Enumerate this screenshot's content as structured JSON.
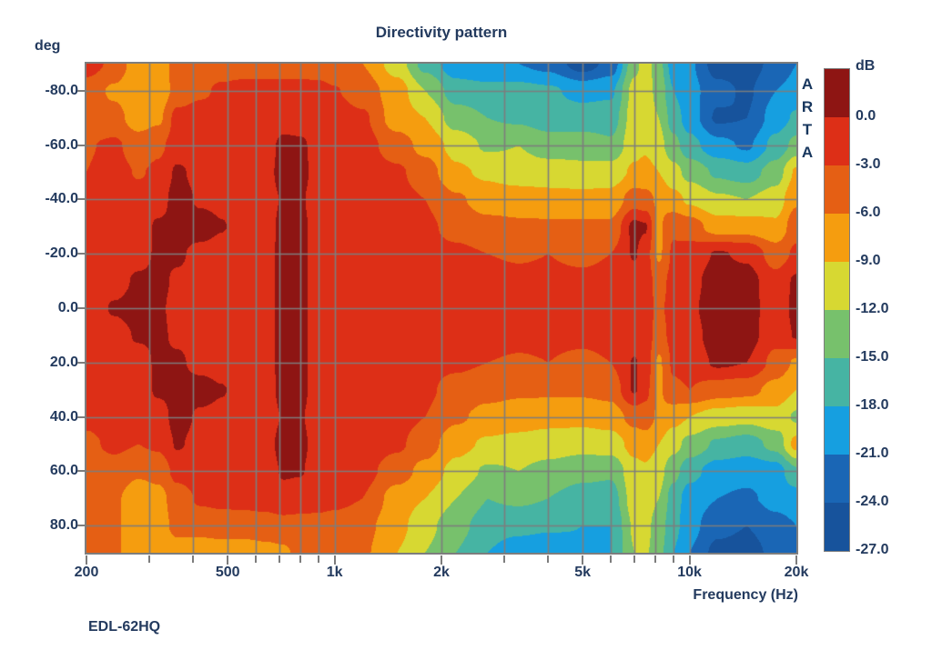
{
  "chart_data": {
    "type": "heatmap",
    "title": "Directivity pattern",
    "ylabel": "deg",
    "xlabel": "Frequency (Hz)",
    "footer": "EDL-62HQ",
    "watermark": "ARTA",
    "x_scale": "log",
    "x_range_hz": [
      200,
      20000
    ],
    "y_range_deg": [
      -90,
      90
    ],
    "grid_on": true,
    "grid_color": "#7d7d7d",
    "x_tick_labels": [
      {
        "hz": 200,
        "label": "200"
      },
      {
        "hz": 500,
        "label": "500"
      },
      {
        "hz": 1000,
        "label": "1k"
      },
      {
        "hz": 2000,
        "label": "2k"
      },
      {
        "hz": 5000,
        "label": "5k"
      },
      {
        "hz": 10000,
        "label": "10k"
      },
      {
        "hz": 20000,
        "label": "20k"
      }
    ],
    "x_gridlines_hz": [
      300,
      400,
      500,
      600,
      700,
      800,
      900,
      1000,
      2000,
      3000,
      4000,
      5000,
      6000,
      7000,
      8000,
      9000,
      10000
    ],
    "y_tick_labels": [
      {
        "deg": -80,
        "label": "-80.0"
      },
      {
        "deg": -60,
        "label": "-60.0"
      },
      {
        "deg": -40,
        "label": "-40.0"
      },
      {
        "deg": -20,
        "label": "-20.0"
      },
      {
        "deg": 0,
        "label": "0.0"
      },
      {
        "deg": 20,
        "label": "20.0"
      },
      {
        "deg": 40,
        "label": "40.0"
      },
      {
        "deg": 60,
        "label": "60.0"
      },
      {
        "deg": 80,
        "label": "80.0"
      }
    ],
    "colorbar": {
      "title": "dB",
      "boundary_labels": [
        "0.0",
        "-3.0",
        "-6.0",
        "-9.0",
        "-12.0",
        "-15.0",
        "-18.0",
        "-21.0",
        "-24.0",
        "-27.0"
      ],
      "levels_db": [
        0,
        -3,
        -6,
        -9,
        -12,
        -15,
        -18,
        -21,
        -24,
        -27
      ],
      "colors": [
        "#8e1513",
        "#dd2f17",
        "#e55f14",
        "#f59d0f",
        "#d7d832",
        "#77c16c",
        "#46b4a3",
        "#169fe0",
        "#1a66b5",
        "#17539c"
      ]
    },
    "grid": {
      "freqs_hz": [
        200,
        240,
        280,
        320,
        360,
        420,
        480,
        560,
        640,
        720,
        800,
        900,
        1000,
        1200,
        1500,
        1800,
        2200,
        2700,
        3300,
        4000,
        5000,
        6000,
        7000,
        7500,
        8200,
        9000,
        10000,
        12000,
        14500,
        17500,
        20000
      ],
      "angles_deg": [
        -90,
        -80,
        -70,
        -60,
        -50,
        -40,
        -30,
        -20,
        -10,
        0,
        10,
        20,
        30,
        40,
        50,
        60,
        70,
        80,
        90
      ],
      "values_db": [
        [
          -1.5,
          -3.8,
          -8,
          -8,
          -4.5,
          -4.5,
          -4.5,
          -4.5,
          -4.5,
          -4.5,
          -4.5,
          -4.5,
          -5,
          -6,
          -10.5,
          -16,
          -20,
          -21,
          -21,
          -22,
          -25.5,
          -23,
          -13,
          -10.5,
          -14,
          -19.5,
          -20.5,
          -25.5,
          -25.5,
          -23,
          -21
        ],
        [
          -4.5,
          -6.5,
          -8.5,
          -8,
          -5,
          -3.5,
          -2.5,
          -2,
          -2,
          -2,
          -2,
          -2.2,
          -2.8,
          -4.5,
          -7.5,
          -12,
          -16.5,
          -17,
          -17,
          -17.5,
          -19,
          -18.5,
          -11,
          -10.5,
          -13,
          -18,
          -20,
          -23,
          -24.5,
          -21,
          -20
        ],
        [
          -4.5,
          -5,
          -7.5,
          -6.5,
          -2,
          -1.5,
          -1.5,
          -1.5,
          -1.5,
          -1.5,
          -1.5,
          -1.5,
          -1.5,
          -2.5,
          -7.5,
          -9,
          -13.5,
          -15,
          -15.5,
          -16.5,
          -16.5,
          -16.5,
          -10.5,
          -10.5,
          -12,
          -16.5,
          -19.5,
          -24.5,
          -24,
          -19.5,
          -17.5
        ],
        [
          -3.2,
          -2.5,
          -4.5,
          -3.5,
          -1.8,
          -1.5,
          -1.5,
          -1.5,
          -1.2,
          0.8,
          0.5,
          -1,
          -1.5,
          -1.8,
          -4.5,
          -7,
          -10,
          -12.5,
          -12,
          -13.5,
          -13.5,
          -14.5,
          -10,
          -9.5,
          -11,
          -14,
          -17,
          -20,
          -21.5,
          -17,
          -14
        ],
        [
          -3,
          -2,
          -3.2,
          -2.5,
          0.5,
          -1,
          -1.5,
          -1.5,
          -1,
          1.2,
          0.8,
          -1,
          -1.5,
          -1.5,
          -2.5,
          -4.5,
          -8.5,
          -9.5,
          -10.5,
          -10.5,
          -11,
          -10.5,
          -8.5,
          -8,
          -9,
          -11,
          -13,
          -15.5,
          -16.5,
          -13.5,
          -8.5
        ],
        [
          -2.5,
          -1.5,
          -2,
          -1.5,
          1.5,
          -0.5,
          -0.8,
          -1.5,
          -1.2,
          0.3,
          0.3,
          -1.2,
          -1.5,
          -1.5,
          -2,
          -3,
          -5.5,
          -7.5,
          -7.5,
          -8,
          -8,
          -8,
          -4.5,
          -5,
          -6.5,
          -8,
          -9.5,
          -11.5,
          -12,
          -10.5,
          -6.5
        ],
        [
          -2.2,
          -1.5,
          -1.5,
          0.5,
          1,
          1.5,
          0.2,
          -1.5,
          -1.3,
          1,
          0.7,
          -1.2,
          -1.5,
          -1.5,
          -1.8,
          -2.5,
          -3.8,
          -5,
          -5.5,
          -5.5,
          -5.5,
          -5.5,
          0.8,
          0.3,
          -6.5,
          -3.5,
          -4.5,
          -7.5,
          -7.5,
          -8.5,
          -4
        ],
        [
          -2,
          -1.5,
          -1.2,
          0.5,
          0.5,
          -1,
          -1.5,
          -1.5,
          -1.3,
          1.2,
          0.8,
          -1.2,
          -1.5,
          -1.5,
          -1.8,
          -2.2,
          -2.5,
          -3,
          -3.2,
          -3,
          -3.5,
          -3,
          0.3,
          -1.5,
          -6.5,
          -2.5,
          -1.8,
          0.3,
          -0.5,
          -4.5,
          -2.5
        ],
        [
          -1.8,
          -1.2,
          0.5,
          0.8,
          -0.5,
          -1.5,
          -1.5,
          -1.5,
          -1.3,
          1.2,
          0.8,
          -1.2,
          -1.5,
          -1.5,
          -1.8,
          -2,
          -2,
          -2.2,
          -2.5,
          -2.5,
          -2.5,
          -2.2,
          -1.5,
          -1.8,
          -4,
          -2.2,
          -1,
          1.5,
          1.2,
          -2,
          0.5
        ],
        [
          -1.8,
          0.3,
          1.2,
          0.5,
          -1,
          -1.5,
          -1.5,
          -1.5,
          -1.3,
          1.2,
          0.8,
          -1.2,
          -1.5,
          -1.5,
          -1.8,
          -2,
          -2,
          -2,
          -2.2,
          -2.2,
          -2.2,
          -2,
          -1.8,
          -2,
          -3.5,
          -2,
          -0.5,
          1.5,
          1.3,
          -1.8,
          0.8
        ],
        [
          -1.8,
          -1.2,
          0.3,
          0.5,
          -0.5,
          -1.5,
          -1.5,
          -1.5,
          -1.3,
          1.2,
          0.8,
          -1.2,
          -1.5,
          -1.5,
          -1.8,
          -2,
          -2,
          -2.2,
          -2.5,
          -2.5,
          -2.5,
          -2.2,
          -1.5,
          -1.8,
          -4,
          -2.2,
          -1.2,
          1.5,
          1.2,
          -2,
          0.3
        ],
        [
          -2,
          -1.5,
          -1.2,
          0.5,
          0.5,
          -1,
          -1.5,
          -1.5,
          -1.3,
          1.2,
          0.8,
          -1.2,
          -1.5,
          -1.5,
          -1.8,
          -2.2,
          -2.5,
          -3,
          -3.2,
          -3,
          -3.5,
          -3,
          0.2,
          -1,
          -6.5,
          -2.5,
          -1.8,
          0.5,
          0,
          -4,
          -6.5
        ],
        [
          -2.2,
          -1.5,
          -1.5,
          0.5,
          1,
          1.2,
          0.2,
          -1.5,
          -1.3,
          1,
          0.7,
          -1.2,
          -1.5,
          -1.5,
          -1.8,
          -2.5,
          -4,
          -5,
          -5.5,
          -5.5,
          -5.5,
          -5,
          0.3,
          -2,
          -6.5,
          -3.5,
          -3,
          -4.5,
          -5,
          -7,
          -9
        ],
        [
          -2.5,
          -1.8,
          -2,
          -1.5,
          1.2,
          -0.5,
          -0.8,
          -1.5,
          -1.2,
          0.2,
          0.2,
          -1.2,
          -1.5,
          -1.5,
          -2,
          -3,
          -5.5,
          -7,
          -7.5,
          -8,
          -8,
          -7.5,
          -5,
          -4.5,
          -6.5,
          -8,
          -9,
          -10.5,
          -11,
          -10,
          -12.5
        ],
        [
          -3.5,
          -2.5,
          -3,
          -2.5,
          0.3,
          -1,
          -1.3,
          -1.5,
          -1,
          1,
          0.6,
          -1,
          -1.5,
          -1.5,
          -2.5,
          -4.5,
          -8,
          -9.5,
          -10,
          -10.5,
          -11,
          -10.5,
          -8,
          -7.5,
          -9,
          -11,
          -13,
          -15.5,
          -16.5,
          -14,
          -8
        ],
        [
          -4.5,
          -4,
          -5.5,
          -5,
          -2,
          -1.5,
          -1.5,
          -1.5,
          -1.2,
          0.3,
          0.2,
          -1.2,
          -1.8,
          -2,
          -4.5,
          -7,
          -10,
          -12.5,
          -12,
          -13,
          -14,
          -14.5,
          -10,
          -9.5,
          -11,
          -14,
          -17,
          -19.5,
          -20,
          -19.5,
          -15.5
        ],
        [
          -4.8,
          -5.5,
          -8,
          -7,
          -4.5,
          -2.5,
          -2.2,
          -2,
          -1.8,
          -1,
          -1.5,
          -1.8,
          -2.2,
          -3,
          -7.5,
          -9,
          -12,
          -15,
          -14.5,
          -15,
          -16.5,
          -16.5,
          -10.5,
          -10.5,
          -12,
          -16.5,
          -19.5,
          -21,
          -21.5,
          -20,
          -19.5
        ],
        [
          -5,
          -5.5,
          -8.5,
          -7.5,
          -5,
          -5,
          -4.5,
          -4.5,
          -4.2,
          -4,
          -4,
          -4,
          -4.2,
          -5,
          -8,
          -11,
          -14,
          -16.5,
          -17,
          -17.5,
          -18,
          -18,
          -11.5,
          -11,
          -13.5,
          -17,
          -20,
          -23,
          -24,
          -22,
          -21
        ],
        [
          -5,
          -5.5,
          -8.5,
          -8,
          -7.5,
          -7.5,
          -7.5,
          -7.5,
          -7,
          -6.5,
          -5,
          -4.5,
          -4.5,
          -5.5,
          -9,
          -12,
          -15,
          -18,
          -20,
          -20.5,
          -18.5,
          -18,
          -12,
          -11.5,
          -14,
          -18,
          -21,
          -25,
          -25.5,
          -23,
          -21.5
        ]
      ]
    }
  }
}
